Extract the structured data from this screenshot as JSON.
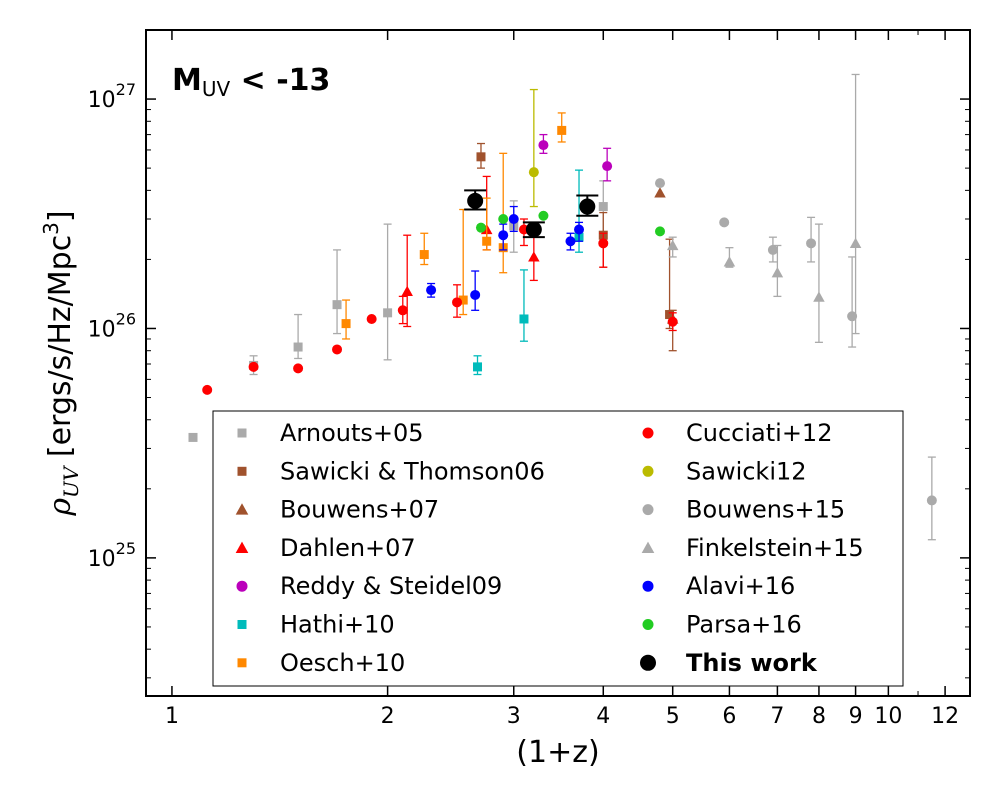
{
  "chart_data": {
    "type": "scatter",
    "title": "",
    "annotation": {
      "main": "M",
      "sub": "UV",
      "rest": " < -13"
    },
    "xlabel": "(1+z)",
    "ylabel": {
      "symbol": "ρ",
      "sub": "UV",
      "text": " [ergs/s/Hz/Mpc",
      "sup": "3",
      "end": "]"
    },
    "x_scale": "log",
    "y_scale": "log",
    "xlim": [
      0.92,
      13
    ],
    "ylim": [
      2.5e+24,
      2e+27
    ],
    "x_ticks": [
      1,
      2,
      3,
      4,
      5,
      6,
      7,
      8,
      9,
      10,
      12
    ],
    "x_tick_labels": [
      "1",
      "2",
      "3",
      "4",
      "5",
      "6",
      "7",
      "8",
      "9",
      "10",
      "12"
    ],
    "y_major_ticks": [
      1e+25,
      1e+26,
      1e+27
    ],
    "y_tick_labels": [
      {
        "base": "10",
        "exp": "25"
      },
      {
        "base": "10",
        "exp": "26"
      },
      {
        "base": "10",
        "exp": "27"
      }
    ],
    "grid": false,
    "legend": {
      "position": "lower-center",
      "columns": 2
    },
    "series": [
      {
        "name": "Arnouts+05",
        "marker": "square",
        "color": "#aaaaaa",
        "points": [
          {
            "x": 1.07,
            "y": 3.35e+25
          },
          {
            "x": 1.3,
            "y": 6.9e+25,
            "lo": 6.3e+25,
            "hi": 7.6e+25
          },
          {
            "x": 1.5,
            "y": 8.3e+25,
            "lo": 7.4e+25,
            "hi": 1.15e+26
          },
          {
            "x": 1.7,
            "y": 1.27e+26,
            "lo": 9.5e+25,
            "hi": 2.2e+26
          },
          {
            "x": 2.0,
            "y": 1.17e+26,
            "lo": 7.3e+25,
            "hi": 2.85e+26
          },
          {
            "x": 3.0,
            "y": 2.8e+26,
            "lo": 2.15e+26,
            "hi": 3.6e+26
          },
          {
            "x": 4.0,
            "y": 3.4e+26,
            "lo": 2.6e+26,
            "hi": 4.4e+26
          }
        ]
      },
      {
        "name": "Sawicki & Thomson06",
        "marker": "square",
        "color": "#a0522d",
        "points": [
          {
            "x": 2.7,
            "y": 5.6e+26,
            "lo": 5e+26,
            "hi": 6.4e+26
          },
          {
            "x": 4.0,
            "y": 2.55e+26,
            "lo": 1.85e+26,
            "hi": 3.2e+26
          },
          {
            "x": 4.95,
            "y": 1.15e+26,
            "lo": 1e+26,
            "hi": 2.45e+26
          }
        ]
      },
      {
        "name": "Bouwens+07",
        "marker": "triangle",
        "color": "#a0522d",
        "points": [
          {
            "x": 4.8,
            "y": 3.9e+26
          },
          {
            "x": 5.0,
            "y": 1.1e+26,
            "lo": 8e+25,
            "hi": 1.2e+26
          }
        ]
      },
      {
        "name": "Dahlen+07",
        "marker": "triangle",
        "color": "#ff0000",
        "points": [
          {
            "x": 2.13,
            "y": 1.45e+26,
            "lo": 1.02e+26,
            "hi": 2.55e+26
          },
          {
            "x": 2.75,
            "y": 2.7e+26,
            "lo": 2.2e+26,
            "hi": 4.6e+26
          },
          {
            "x": 3.2,
            "y": 2.05e+26,
            "lo": 1.62e+26,
            "hi": 2.75e+26
          }
        ]
      },
      {
        "name": "Reddy & Steidel09",
        "marker": "circle",
        "color": "#bb00bb",
        "points": [
          {
            "x": 3.3,
            "y": 6.3e+26,
            "lo": 5.8e+26,
            "hi": 7e+26
          },
          {
            "x": 4.05,
            "y": 5.1e+26,
            "lo": 4.4e+26,
            "hi": 6.1e+26
          }
        ]
      },
      {
        "name": "Hathi+10",
        "marker": "square",
        "color": "#00bbbb",
        "points": [
          {
            "x": 2.67,
            "y": 6.8e+25,
            "lo": 6.3e+25,
            "hi": 7.6e+25
          },
          {
            "x": 3.1,
            "y": 1.1e+26,
            "lo": 8.8e+25,
            "hi": 1.8e+26
          },
          {
            "x": 3.7,
            "y": 2.5e+26,
            "lo": 2.15e+26,
            "hi": 4.9e+26
          }
        ]
      },
      {
        "name": "Oesch+10",
        "marker": "square",
        "color": "#ff8800",
        "points": [
          {
            "x": 1.75,
            "y": 1.05e+26,
            "lo": 9e+25,
            "hi": 1.33e+26
          },
          {
            "x": 2.25,
            "y": 2.1e+26,
            "lo": 1.9e+26,
            "hi": 2.6e+26
          },
          {
            "x": 2.55,
            "y": 1.33e+26,
            "lo": 1.15e+26,
            "hi": 3.3e+26
          },
          {
            "x": 2.75,
            "y": 2.4e+26,
            "lo": 2.2e+26,
            "hi": 3.7e+26
          },
          {
            "x": 2.9,
            "y": 2.25e+26,
            "lo": 1.75e+26,
            "hi": 5.8e+26
          },
          {
            "x": 3.5,
            "y": 7.3e+26,
            "lo": 6.5e+26,
            "hi": 8.7e+26
          }
        ]
      },
      {
        "name": "Cucciati+12",
        "marker": "circle",
        "color": "#ff0000",
        "points": [
          {
            "x": 1.12,
            "y": 5.4e+25
          },
          {
            "x": 1.3,
            "y": 6.8e+25
          },
          {
            "x": 1.5,
            "y": 6.7e+25
          },
          {
            "x": 1.7,
            "y": 8.1e+25
          },
          {
            "x": 1.9,
            "y": 1.1e+26
          },
          {
            "x": 2.1,
            "y": 1.2e+26,
            "lo": 1.05e+26,
            "hi": 1.38e+26
          },
          {
            "x": 2.5,
            "y": 1.3e+26,
            "lo": 1.12e+26,
            "hi": 1.55e+26
          },
          {
            "x": 3.1,
            "y": 2.7e+26,
            "lo": 2.3e+26,
            "hi": 3e+26
          },
          {
            "x": 4.0,
            "y": 2.35e+26,
            "lo": 1.85e+26,
            "hi": 2.6e+26
          },
          {
            "x": 5.0,
            "y": 1.07e+26,
            "lo": 9.8e+25,
            "hi": 1.17e+26
          }
        ]
      },
      {
        "name": "Sawicki12",
        "marker": "circle",
        "color": "#bbbb00",
        "points": [
          {
            "x": 3.2,
            "y": 4.8e+26,
            "lo": 3.4e+26,
            "hi": 1.1e+27
          }
        ]
      },
      {
        "name": "Bouwens+15",
        "marker": "circle",
        "color": "#aaaaaa",
        "points": [
          {
            "x": 4.8,
            "y": 4.3e+26
          },
          {
            "x": 5.9,
            "y": 2.9e+26
          },
          {
            "x": 6.9,
            "y": 2.2e+26,
            "lo": 1.95e+26,
            "hi": 2.5e+26
          },
          {
            "x": 7.8,
            "y": 2.35e+26,
            "lo": 1.95e+26,
            "hi": 3.05e+26
          },
          {
            "x": 8.9,
            "y": 1.13e+26,
            "lo": 8.3e+25,
            "hi": 2.05e+26
          },
          {
            "x": 11.5,
            "y": 1.78e+25,
            "lo": 1.2e+25,
            "hi": 2.75e+25
          }
        ]
      },
      {
        "name": "Finkelstein+15",
        "marker": "triangle",
        "color": "#aaaaaa",
        "points": [
          {
            "x": 5.0,
            "y": 2.3e+26,
            "lo": 2.05e+26,
            "hi": 2.5e+26
          },
          {
            "x": 6.0,
            "y": 1.95e+26,
            "lo": 1.85e+26,
            "hi": 2.25e+26
          },
          {
            "x": 7.0,
            "y": 1.75e+26,
            "lo": 1.38e+26,
            "hi": 2.3e+26
          },
          {
            "x": 8.0,
            "y": 1.37e+26,
            "lo": 8.7e+25,
            "hi": 2.85e+26
          },
          {
            "x": 9.0,
            "y": 2.35e+26,
            "lo": 9.5e+25,
            "hi": 1.28e+27
          }
        ]
      },
      {
        "name": "Alavi+16",
        "marker": "circle",
        "color": "#0000ff",
        "points": [
          {
            "x": 2.3,
            "y": 1.47e+26,
            "lo": 1.37e+26,
            "hi": 1.57e+26
          },
          {
            "x": 2.65,
            "y": 1.4e+26,
            "lo": 1.2e+26,
            "hi": 1.78e+26
          },
          {
            "x": 2.9,
            "y": 2.55e+26,
            "lo": 2.2e+26,
            "hi": 2.85e+26
          },
          {
            "x": 3.0,
            "y": 3e+26,
            "lo": 2.65e+26,
            "hi": 3.4e+26
          },
          {
            "x": 3.6,
            "y": 2.4e+26,
            "lo": 2.2e+26,
            "hi": 2.6e+26
          },
          {
            "x": 3.7,
            "y": 2.7e+26,
            "lo": 2.4e+26,
            "hi": 2.9e+26
          }
        ]
      },
      {
        "name": "Parsa+16",
        "marker": "circle",
        "color": "#22cc22",
        "points": [
          {
            "x": 2.7,
            "y": 2.75e+26
          },
          {
            "x": 2.9,
            "y": 3e+26
          },
          {
            "x": 3.3,
            "y": 3.1e+26
          },
          {
            "x": 3.8,
            "y": 3.5e+26
          },
          {
            "x": 4.8,
            "y": 2.65e+26
          }
        ]
      },
      {
        "name": "This work",
        "marker": "circle",
        "color": "#000000",
        "bold": true,
        "large": true,
        "points": [
          {
            "x": 2.65,
            "y": 3.6e+26,
            "lo": 3.3e+26,
            "hi": 4e+26
          },
          {
            "x": 3.2,
            "y": 2.7e+26,
            "lo": 2.5e+26,
            "hi": 2.9e+26
          },
          {
            "x": 3.8,
            "y": 3.4e+26,
            "lo": 3.1e+26,
            "hi": 3.8e+26
          }
        ]
      }
    ]
  }
}
